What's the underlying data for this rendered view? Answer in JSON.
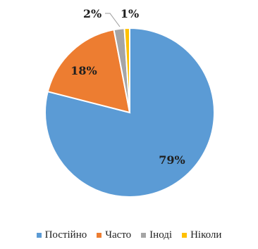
{
  "chart_data": {
    "type": "pie",
    "categories": [
      "Постійно",
      "Часто",
      "Іноді",
      "Ніколи"
    ],
    "values": [
      79,
      18,
      2,
      1
    ],
    "labels": [
      "79%",
      "18%",
      "2%",
      "1%"
    ],
    "colors": [
      "#5B9BD5",
      "#ED7D31",
      "#A5A5A5",
      "#FFC000"
    ],
    "legend_position": "bottom"
  }
}
